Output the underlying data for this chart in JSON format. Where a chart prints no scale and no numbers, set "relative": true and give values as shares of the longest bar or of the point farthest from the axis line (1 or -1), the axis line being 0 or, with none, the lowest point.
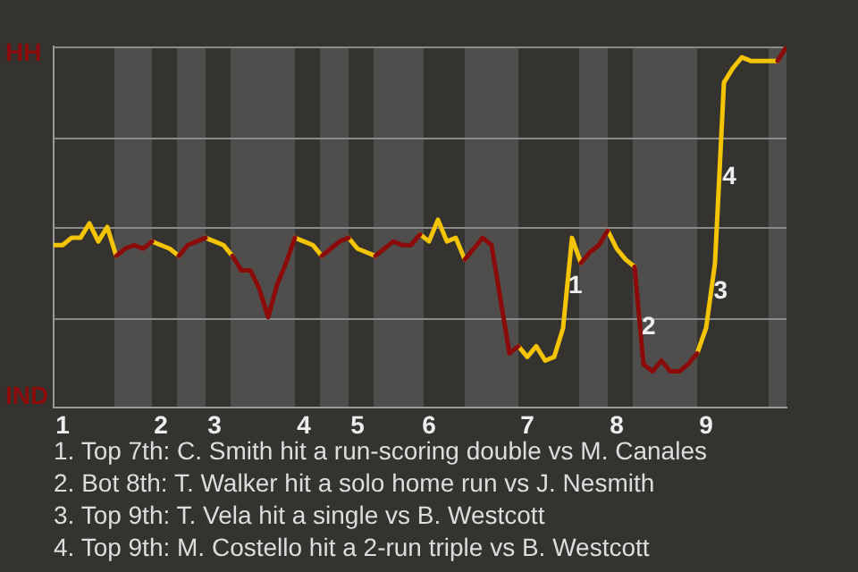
{
  "chart_data": {
    "type": "line",
    "categories": [
      null,
      "1",
      null,
      null,
      null,
      null,
      null,
      null,
      null,
      null,
      null,
      null,
      "2",
      null,
      null,
      null,
      null,
      null,
      "3",
      null,
      null,
      null,
      null,
      null,
      null,
      null,
      null,
      null,
      "4",
      null,
      null,
      null,
      null,
      null,
      "5",
      null,
      null,
      null,
      null,
      null,
      null,
      null,
      "6",
      null,
      null,
      null,
      null,
      null,
      null,
      null,
      null,
      null,
      null,
      "7",
      null,
      null,
      null,
      null,
      null,
      null,
      null,
      null,
      null,
      "8",
      null,
      null,
      null,
      null,
      null,
      null,
      null,
      null,
      null,
      "9",
      null,
      null,
      null,
      null,
      null,
      null,
      null,
      null,
      null
    ],
    "relative": true,
    "series": [
      {
        "color": "#f5c400",
        "values": [
          0.45,
          0.45,
          0.47,
          0.47,
          0.51,
          0.46,
          0.5,
          0.42,
          null,
          null,
          null,
          0.46,
          0.45,
          0.44,
          0.42,
          null,
          null,
          0.47,
          0.46,
          0.45,
          0.42,
          null,
          null,
          null,
          null,
          null,
          null,
          0.47,
          0.46,
          0.45,
          0.42,
          null,
          null,
          0.47,
          0.44,
          0.43,
          0.42,
          null,
          null,
          null,
          null,
          0.48,
          0.46,
          0.52,
          0.46,
          0.47,
          0.41,
          null,
          null,
          null,
          null,
          null,
          0.17,
          0.14,
          0.17,
          0.13,
          0.14,
          0.22,
          0.47,
          0.4,
          null,
          null,
          0.49,
          0.44,
          0.41,
          0.39,
          null,
          null,
          null,
          null,
          null,
          null,
          0.15,
          0.22,
          0.4,
          0.9,
          0.94,
          0.97,
          0.96,
          0.96,
          0.96,
          0.96,
          null
        ]
      },
      {
        "color": "#8b0a0a",
        "values": [
          null,
          null,
          null,
          null,
          null,
          null,
          null,
          0.42,
          0.44,
          0.45,
          0.44,
          0.46,
          null,
          null,
          0.42,
          0.45,
          0.46,
          0.47,
          null,
          null,
          0.42,
          0.38,
          0.38,
          0.33,
          0.25,
          0.34,
          0.4,
          0.47,
          null,
          null,
          0.42,
          0.44,
          0.46,
          0.47,
          null,
          null,
          0.42,
          0.44,
          0.46,
          0.45,
          0.45,
          0.48,
          null,
          null,
          null,
          null,
          0.41,
          0.44,
          0.47,
          0.45,
          0.3,
          0.15,
          0.17,
          null,
          null,
          null,
          null,
          null,
          null,
          0.4,
          0.43,
          0.45,
          0.49,
          null,
          null,
          0.39,
          0.12,
          0.1,
          0.13,
          0.1,
          0.1,
          0.12,
          0.15,
          null,
          null,
          null,
          null,
          null,
          null,
          null,
          null,
          0.96,
          1.0
        ]
      }
    ],
    "marker": "none",
    "line_style": "solid",
    "ref_lines": [
      {
        "axis": "y",
        "value": 0.25,
        "color": "#8a8a8a"
      },
      {
        "axis": "y",
        "value": 0.5,
        "color": "#8a8a8a"
      },
      {
        "axis": "y",
        "value": 0.75,
        "color": "#8a8a8a"
      },
      {
        "axis": "y",
        "value": 1,
        "color": "#8a8a8a"
      }
    ],
    "annotations": [
      "HH",
      "IND",
      "1",
      "2",
      "3",
      "4",
      "1. Top 7th: C. Smith hit a run-scoring double vs M. Canales",
      "2. Bot 8th: T. Walker hit a solo home run vs J. Nesmith",
      "3. Top 9th: T. Vela hit a single vs B. Westcott",
      "4. Top 9th: M. Costello hit a 2-run triple vs B. Westcott"
    ]
  }
}
